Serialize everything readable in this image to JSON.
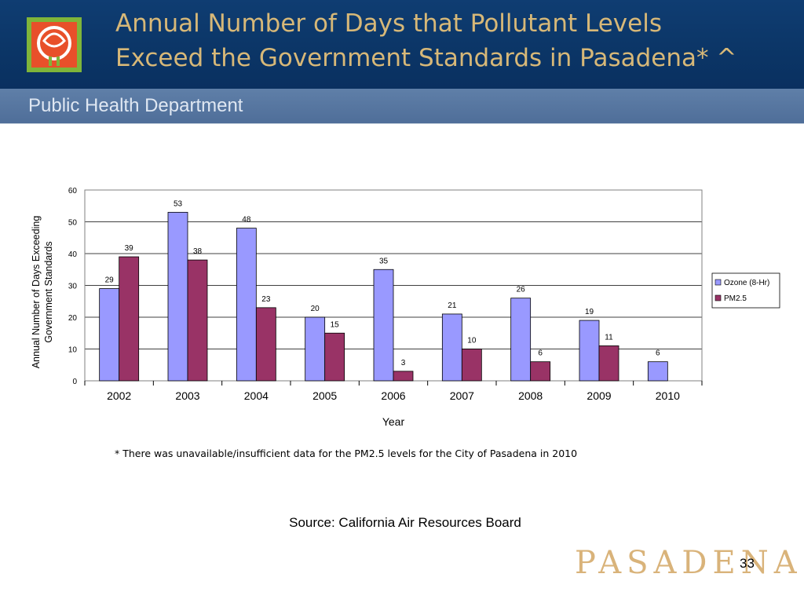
{
  "slide": {
    "title_line1": "Annual Number of Days that Pollutant Levels",
    "title_line2": "Exceed the Government Standards in Pasadena* ^",
    "subtitle": "Public Health Department",
    "footnote": "* There was unavailable/insufficient data for the PM2.5 levels for the City of Pasadena in 2010",
    "source": "Source: California Air Resources Board",
    "brand": "PASADENA",
    "page_number": "33"
  },
  "colors": {
    "header_bg": "#0b3566",
    "title_text": "#d7b878",
    "ozone": "#9999ff",
    "pm25": "#993366"
  },
  "icons": {
    "logo": "rose-logo"
  },
  "chart_data": {
    "type": "bar",
    "categories": [
      "2002",
      "2003",
      "2004",
      "2005",
      "2006",
      "2007",
      "2008",
      "2009",
      "2010"
    ],
    "series": [
      {
        "name": "Ozone (8-Hr)",
        "values": [
          29,
          53,
          48,
          20,
          35,
          21,
          26,
          19,
          6
        ]
      },
      {
        "name": "PM2.5",
        "values": [
          39,
          38,
          23,
          15,
          3,
          10,
          6,
          11,
          null
        ]
      }
    ],
    "xlabel": "Year",
    "ylabel_line1": "Annual Number of Days Exceeding",
    "ylabel_line2": "Government  Standards",
    "ylim": [
      0,
      60
    ],
    "yticks": [
      0,
      10,
      20,
      30,
      40,
      50,
      60
    ],
    "grid": true,
    "legend": "right"
  }
}
